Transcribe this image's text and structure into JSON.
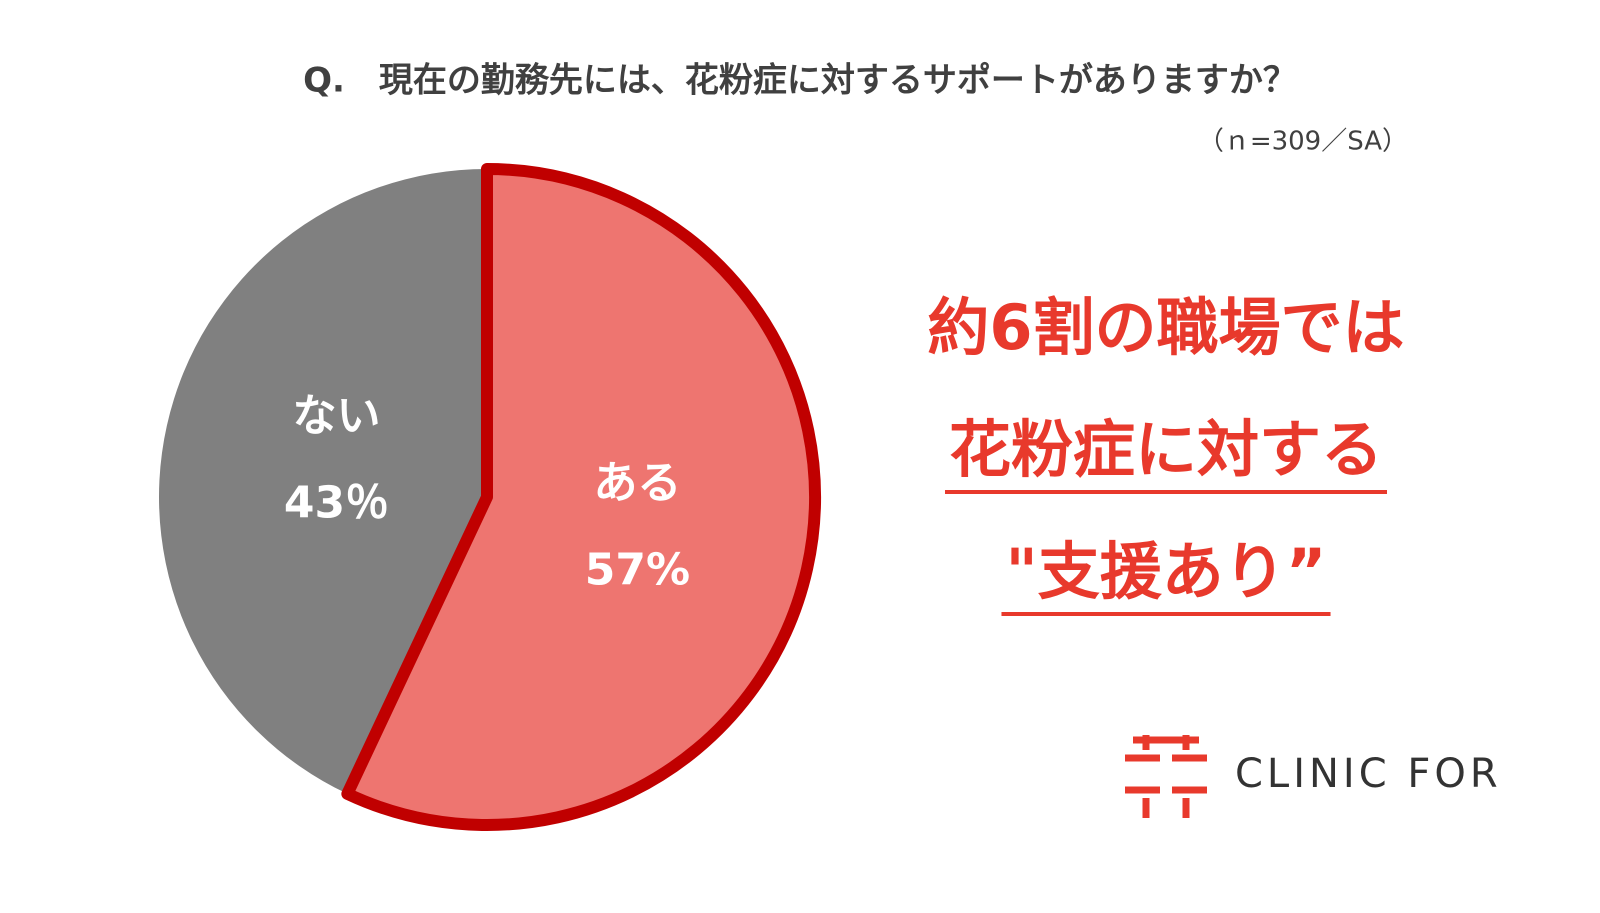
{
  "chart_data": {
    "type": "pie",
    "title": "Q.　現在の勤務先には、花粉症に対するサポートがありますか？",
    "subtitle": "（ｎ=309／SA）",
    "categories": [
      "ある",
      "ない"
    ],
    "values": [
      57,
      43
    ],
    "value_labels": [
      "57%",
      "43％"
    ],
    "colors": [
      "#ee7570",
      "#808080"
    ],
    "edge_colors": [
      "#c00000",
      null
    ],
    "annotations": [
      "約6割の職場では",
      "花粉症に対する",
      "\"支援あり”"
    ],
    "underlined": [
      false,
      true,
      true
    ],
    "annotation_color": "#e8392c",
    "brand": "CLINIC FOR"
  }
}
